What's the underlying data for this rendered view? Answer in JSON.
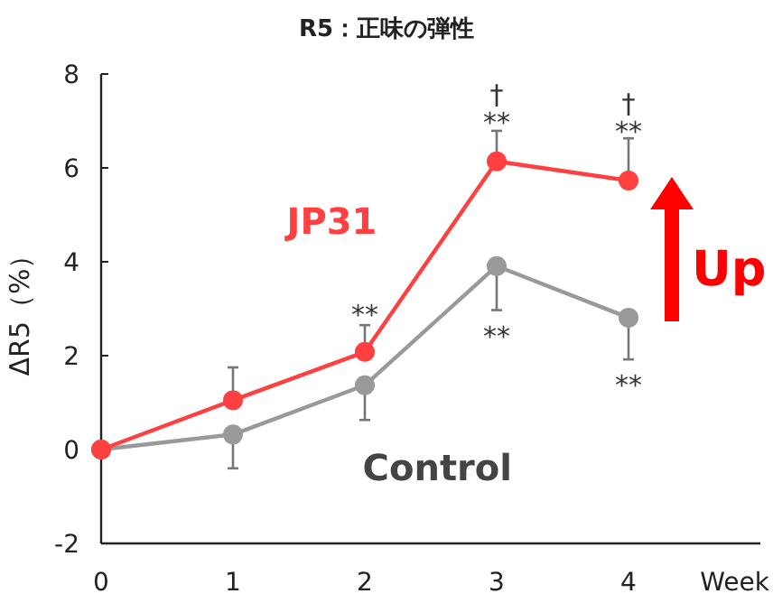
{
  "chart_data": {
    "type": "line",
    "title": "R5：正味の弾性",
    "xlabel": "Week",
    "ylabel": "ΔR5（%）",
    "x": [
      0,
      1,
      2,
      3,
      4
    ],
    "series": [
      {
        "name": "JP31",
        "color": "#ff4040",
        "values": [
          0,
          1.05,
          2.08,
          6.14,
          5.73
        ],
        "errors": [
          null,
          [
            1.05,
            1.75
          ],
          [
            2.08,
            2.65
          ],
          [
            6.14,
            6.79
          ],
          [
            5.73,
            6.63
          ]
        ]
      },
      {
        "name": "Control",
        "color": "#999999",
        "values": [
          0,
          0.32,
          1.37,
          3.91,
          2.81
        ],
        "errors": [
          null,
          [
            -0.4,
            0.32
          ],
          [
            0.63,
            1.37
          ],
          [
            2.97,
            3.91
          ],
          [
            1.92,
            2.81
          ]
        ]
      }
    ],
    "xlim": [
      0,
      5
    ],
    "xticks": [
      0,
      1,
      2,
      3,
      4
    ],
    "ylim": [
      -2,
      8
    ],
    "yticks": [
      -2,
      0,
      2,
      4,
      6,
      8
    ],
    "marker": "circle",
    "annotations": [
      "**",
      "**",
      "**",
      "†",
      "†",
      "**",
      "**",
      "Up"
    ]
  }
}
